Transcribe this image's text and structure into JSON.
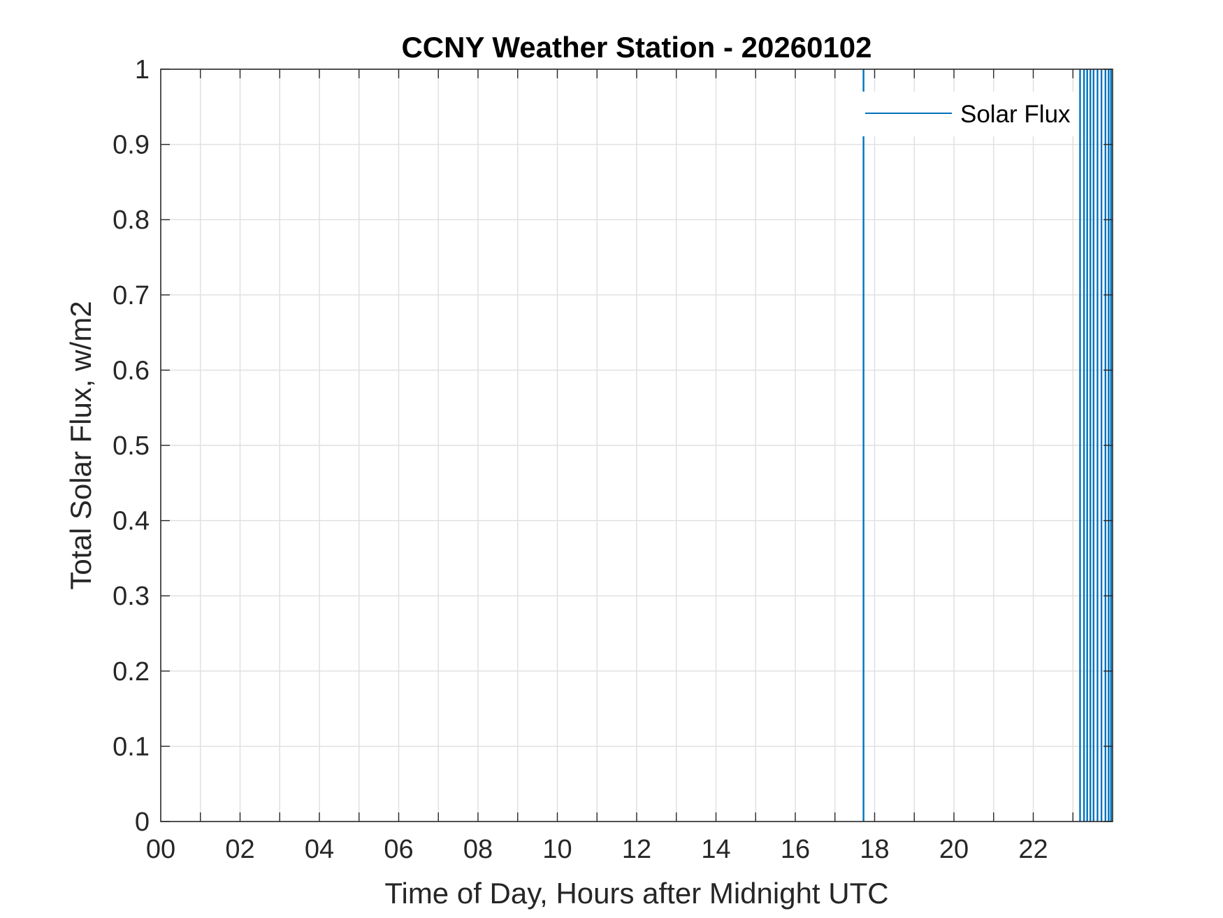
{
  "chart_data": {
    "type": "line",
    "title": "CCNY Weather Station - 20260102",
    "xlabel": "Time of Day, Hours after Midnight UTC",
    "ylabel": "Total Solar Flux, w/m2",
    "xlim": [
      0,
      24
    ],
    "ylim": [
      0,
      1
    ],
    "x_ticks": [
      0,
      2,
      4,
      6,
      8,
      10,
      12,
      14,
      16,
      18,
      20,
      22
    ],
    "x_tick_labels": [
      "00",
      "02",
      "04",
      "06",
      "08",
      "10",
      "12",
      "14",
      "16",
      "18",
      "20",
      "22"
    ],
    "y_ticks": [
      0,
      0.1,
      0.2,
      0.3,
      0.4,
      0.5,
      0.6,
      0.7,
      0.8,
      0.9,
      1
    ],
    "y_tick_labels": [
      "0",
      "0.1",
      "0.2",
      "0.3",
      "0.4",
      "0.5",
      "0.6",
      "0.7",
      "0.8",
      "0.9",
      "1"
    ],
    "grid": true,
    "legend": {
      "position": "top-right",
      "entries": [
        "Solar Flux"
      ]
    },
    "series": [
      {
        "name": "Solar Flux",
        "color": "#0072BD",
        "vertical_segments_at_x": [
          17.72,
          23.18,
          23.28,
          23.36,
          23.44,
          23.52,
          23.62,
          23.72,
          23.82,
          23.9,
          23.96
        ]
      }
    ]
  }
}
